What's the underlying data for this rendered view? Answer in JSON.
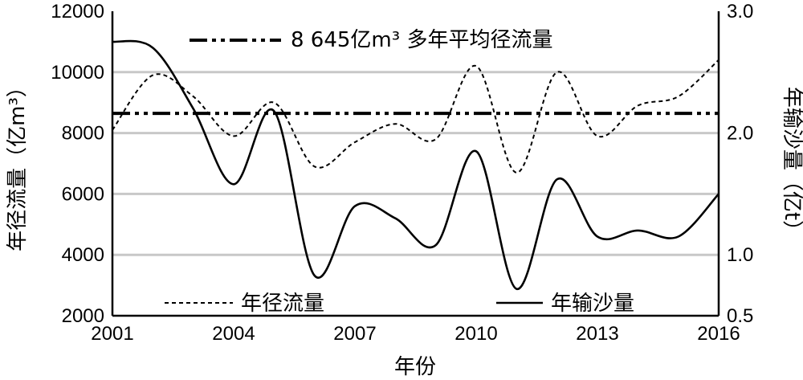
{
  "chart_data": {
    "type": "line",
    "x": [
      2001,
      2002,
      2003,
      2004,
      2005,
      2006,
      2007,
      2008,
      2009,
      2010,
      2011,
      2012,
      2013,
      2014,
      2015,
      2016
    ],
    "x_ticks": [
      "2001",
      "2004",
      "2007",
      "2010",
      "2013",
      "2016"
    ],
    "xlabel": "年份",
    "ylabel_left": "年径流量（亿m³）",
    "ylabel_right": "年输沙量（亿t）",
    "ylim_left": [
      2000,
      12000
    ],
    "yticks_left": [
      "2000",
      "4000",
      "6000",
      "8000",
      "10000",
      "12000"
    ],
    "ylim_right": [
      0.5,
      3.0
    ],
    "yticks_right": [
      "0.5",
      "1.0",
      "2.0",
      "3.0"
    ],
    "grid": "horizontal",
    "series": [
      {
        "name": "年径流量",
        "axis": "left",
        "style": "dashed",
        "values": [
          8100,
          9900,
          9200,
          7900,
          9000,
          6900,
          7700,
          8300,
          7800,
          10200,
          6700,
          10000,
          7900,
          8900,
          9200,
          10400
        ]
      },
      {
        "name": "年输沙量",
        "axis": "right",
        "style": "solid",
        "values": [
          2.75,
          2.7,
          2.2,
          1.58,
          2.18,
          0.83,
          1.4,
          1.3,
          1.08,
          1.85,
          0.72,
          1.62,
          1.15,
          1.2,
          1.15,
          1.5
        ]
      }
    ],
    "reference_line": {
      "label": "8 645亿m³ 多年平均径流量",
      "value": 8645,
      "axis": "left",
      "style": "dash-dot-dot"
    },
    "legend": [
      "年径流量",
      "年输沙量"
    ],
    "legend_position": "bottom"
  }
}
